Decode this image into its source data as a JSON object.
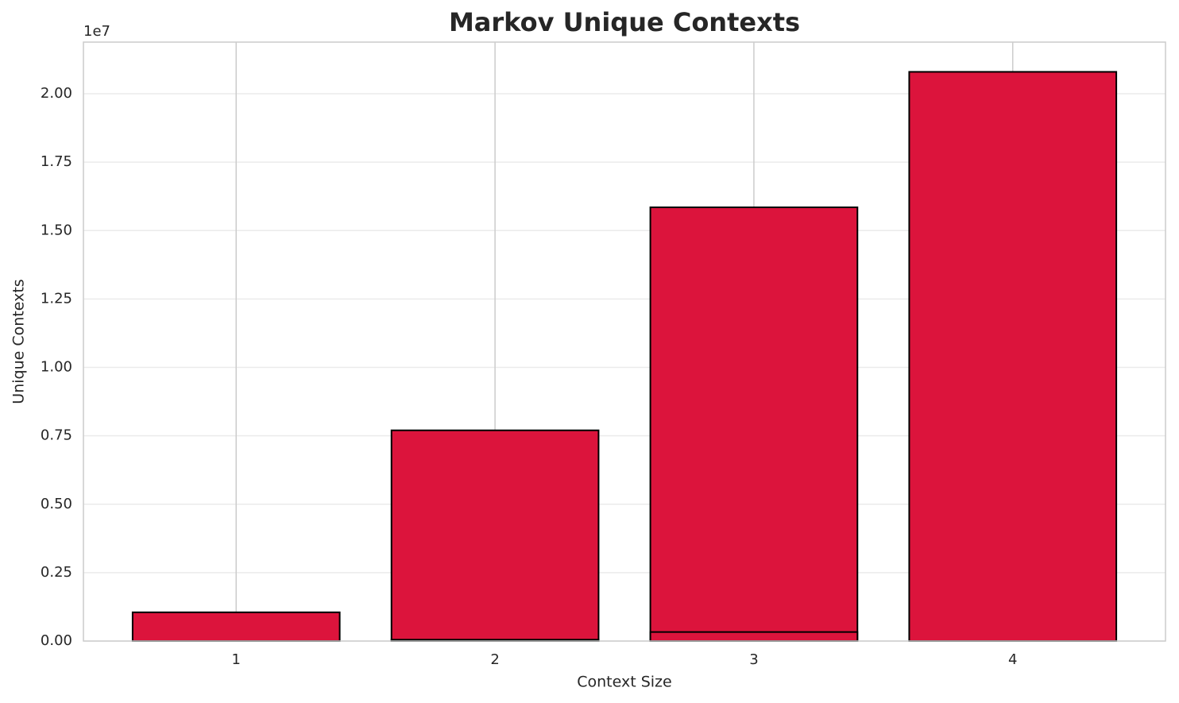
{
  "chart_data": {
    "type": "bar",
    "title": "Markov Unique Contexts",
    "x_label": "Context Size",
    "y_label": "Unique Contexts",
    "y_offset_label": "1e7",
    "categories": [
      "1",
      "2",
      "3",
      "4"
    ],
    "series": [
      {
        "color": "#dc143c",
        "values": [
          1050000,
          7700000,
          15850000,
          20800000
        ]
      },
      {
        "color": "#dc143c",
        "values": [
          0,
          50000,
          330000,
          0
        ]
      }
    ],
    "ylim": [
      0,
      21887000
    ],
    "yticks": [
      {
        "value": 0,
        "label": "0.00"
      },
      {
        "value": 2500000,
        "label": "0.25"
      },
      {
        "value": 5000000,
        "label": "0.50"
      },
      {
        "value": 7500000,
        "label": "0.75"
      },
      {
        "value": 10000000,
        "label": "1.00"
      },
      {
        "value": 12500000,
        "label": "1.25"
      },
      {
        "value": 15000000,
        "label": "1.50"
      },
      {
        "value": 17500000,
        "label": "1.75"
      },
      {
        "value": 20000000,
        "label": "2.00"
      }
    ],
    "grid": true
  }
}
